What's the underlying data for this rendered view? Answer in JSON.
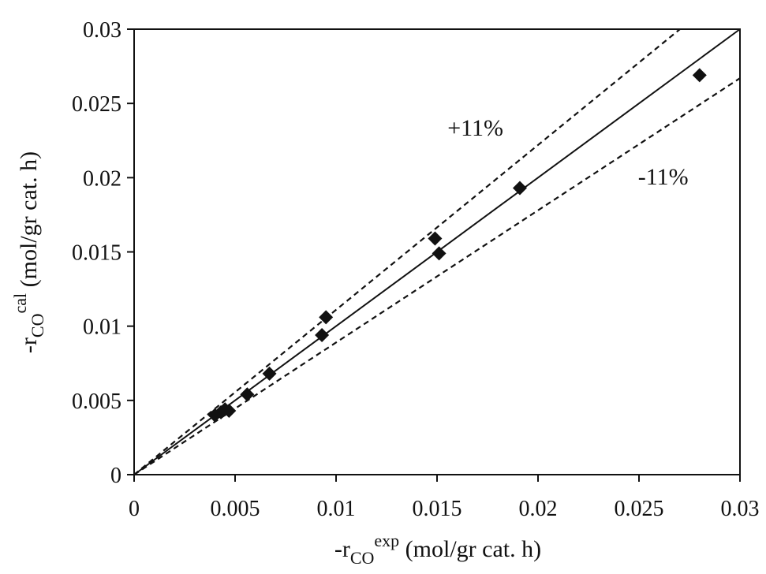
{
  "chart_data": {
    "type": "scatter",
    "xlim": [
      0,
      0.03
    ],
    "ylim": [
      0,
      0.03
    ],
    "x_ticks": [
      "0",
      "0.005",
      "0.01",
      "0.015",
      "0.02",
      "0.025",
      "0.03"
    ],
    "y_ticks": [
      "0",
      "0.005",
      "0.01",
      "0.015",
      "0.02",
      "0.025",
      "0.03"
    ],
    "xlabel": {
      "base": "-r",
      "sub": "CO",
      "sup": "exp",
      "rest": " (mol/gr cat. h)"
    },
    "ylabel": {
      "base": "-r",
      "sub": "CO",
      "sup": "cal",
      "rest": " (mol/gr cat. h)"
    },
    "grid": false,
    "series": [
      {
        "marker": "diamond",
        "x": [
          0.004,
          0.0043,
          0.0045,
          0.0047,
          0.0056,
          0.0067,
          0.0093,
          0.0095,
          0.0149,
          0.0151,
          0.0191,
          0.028
        ],
        "y": [
          0.004,
          0.0042,
          0.0044,
          0.0043,
          0.0054,
          0.0068,
          0.0094,
          0.0106,
          0.0159,
          0.0149,
          0.0193,
          0.0269
        ]
      }
    ],
    "reference_lines": [
      {
        "slope": 1.0,
        "style": "solid"
      },
      {
        "slope": 1.11,
        "style": "dashed",
        "label": "+11%",
        "label_at": [
          0.0169,
          0.0232
        ]
      },
      {
        "slope": 0.89,
        "style": "dashed",
        "label": "-11%",
        "label_at": [
          0.0262,
          0.0199
        ]
      }
    ]
  }
}
